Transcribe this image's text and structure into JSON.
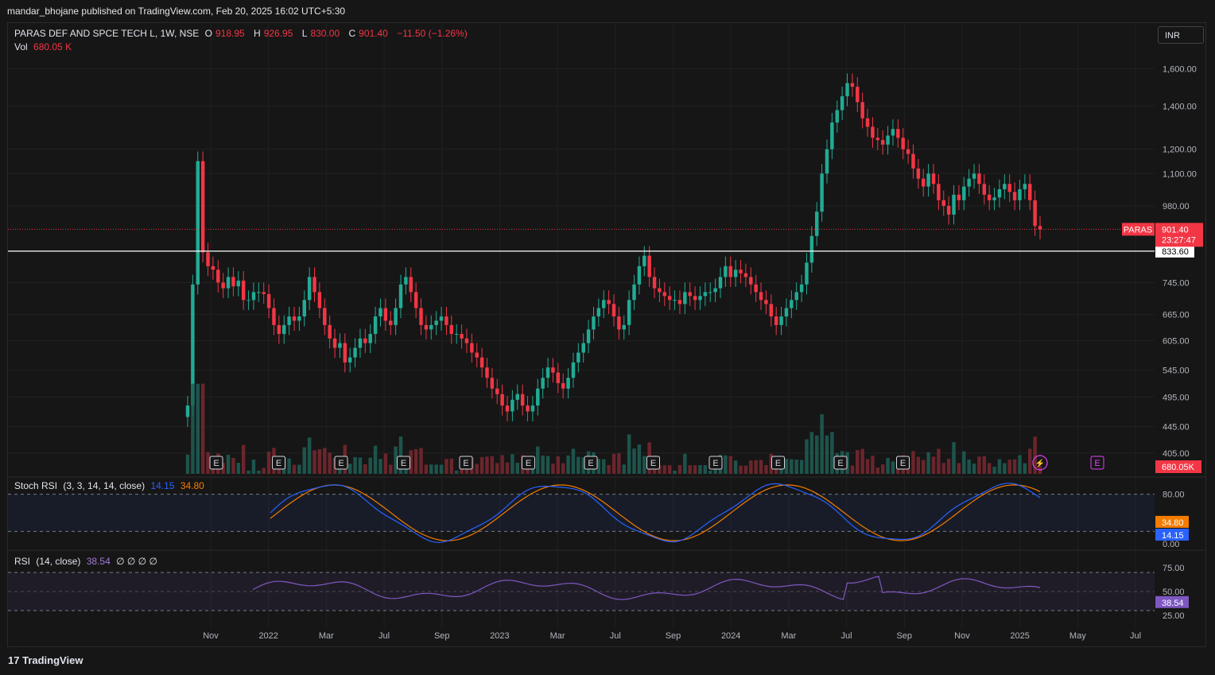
{
  "header": {
    "published": "mandar_bhojane published on TradingView.com, Feb 20, 2025 16:02 UTC+5:30"
  },
  "legend": {
    "symbol": "PARAS DEF AND SPCE TECH L, 1W, NSE",
    "o_label": "O",
    "o": "918.95",
    "h_label": "H",
    "h": "926.95",
    "l_label": "L",
    "l": "830.00",
    "c_label": "C",
    "c": "901.40",
    "chg": "−11.50 (−1.26%)",
    "vol_label": "Vol",
    "vol": "680.05 K"
  },
  "currency": "INR",
  "brand": "TradingView",
  "colors": {
    "up": "#22ab94",
    "down": "#f23645",
    "stoch_k": "#2962ff",
    "stoch_d": "#f57c00",
    "rsi": "#7e57c2",
    "bg": "#161616"
  },
  "chart_data": {
    "type": "candlestick",
    "price_axis": {
      "scale": "log",
      "range": [
        376,
        1725
      ],
      "ticks": [
        "1,600.00",
        "1,400.00",
        "1,200.00",
        "1,100.00",
        "980.00",
        "745.00",
        "665.00",
        "605.00",
        "545.00",
        "495.00",
        "445.00",
        "405.00"
      ]
    },
    "time_axis": {
      "labels": [
        "Nov",
        "2022",
        "Mar",
        "Jul",
        "Sep",
        "2023",
        "Mar",
        "Jul",
        "Sep",
        "2024",
        "Mar",
        "Jul",
        "Sep",
        "Nov",
        "2025",
        "May",
        "Jul"
      ]
    },
    "last_price": {
      "symbol": "PARAS",
      "value": "901.40",
      "countdown": "23:27:47"
    },
    "horizontal_line": {
      "value": "833.60"
    },
    "volume_badge": "680.05K",
    "events": [
      "E",
      "E",
      "E",
      "E",
      "E",
      "E",
      "E",
      "E",
      "E",
      "E",
      "E",
      "E"
    ],
    "closes": [
      480,
      740,
      1150,
      830,
      790,
      780,
      745,
      730,
      760,
      735,
      750,
      700,
      700,
      720,
      720,
      715,
      680,
      640,
      620,
      640,
      660,
      650,
      660,
      700,
      760,
      720,
      680,
      640,
      610,
      590,
      600,
      560,
      570,
      590,
      610,
      600,
      620,
      660,
      680,
      650,
      640,
      680,
      740,
      760,
      720,
      680,
      640,
      630,
      640,
      650,
      660,
      640,
      620,
      620,
      610,
      600,
      580,
      570,
      550,
      530,
      510,
      500,
      480,
      470,
      490,
      500,
      480,
      470,
      480,
      510,
      530,
      550,
      540,
      520,
      510,
      530,
      560,
      580,
      600,
      630,
      660,
      680,
      700,
      690,
      660,
      630,
      640,
      700,
      740,
      790,
      820,
      760,
      730,
      720,
      710,
      700,
      700,
      690,
      720,
      710,
      700,
      710,
      720,
      720,
      730,
      760,
      790,
      760,
      780,
      770,
      760,
      740,
      720,
      700,
      690,
      660,
      640,
      660,
      680,
      700,
      720,
      740,
      800,
      880,
      960,
      1100,
      1200,
      1320,
      1380,
      1450,
      1520,
      1500,
      1420,
      1340,
      1300,
      1250,
      1240,
      1220,
      1260,
      1290,
      1250,
      1200,
      1180,
      1120,
      1080,
      1050,
      1100,
      1060,
      1000,
      980,
      950,
      1020,
      1000,
      1050,
      1080,
      1100,
      1060,
      1020,
      1000,
      1010,
      1040,
      1060,
      1030,
      1000,
      1040,
      1060,
      1000,
      912,
      901
    ],
    "volume": {
      "range": [
        0,
        1.4
      ]
    },
    "panes": [
      {
        "name": "Stoch RSI",
        "params": "(3, 3, 14, 14, close)",
        "k": "14.15",
        "d": "34.80",
        "ticks": [
          "80.00",
          "0.00"
        ],
        "k_label": "14.15",
        "d_label": "34.80"
      },
      {
        "name": "RSI",
        "params": "(14, close)",
        "value": "38.54",
        "extra": "∅ ∅ ∅ ∅",
        "ticks": [
          "75.00",
          "50.00",
          "25.00"
        ],
        "label": "38.54"
      }
    ]
  }
}
